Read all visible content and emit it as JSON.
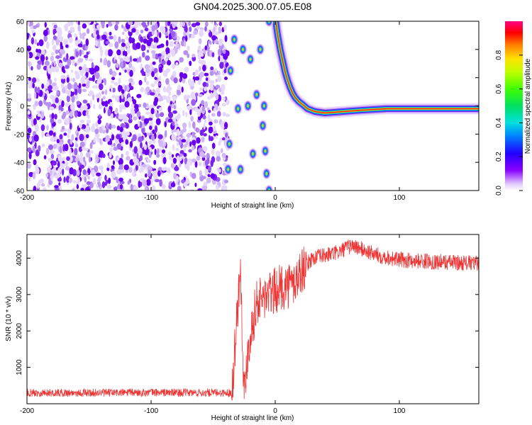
{
  "title": "GN04.2025.300.07.05.E08",
  "colors": {
    "speckle": "#7a20f0",
    "speckle_light": "#c6a4f5",
    "snr_line": "#ee3333",
    "frame": "#000000"
  },
  "chart_data": [
    {
      "type": "heatmap",
      "xlabel": "Height of straight line (km)",
      "ylabel": "Frequency (Hz)",
      "xlim": [
        -200,
        164
      ],
      "ylim": [
        -60,
        60
      ],
      "xticks": [
        -200,
        -100,
        0,
        100
      ],
      "yticks": [
        -60,
        -40,
        -20,
        0,
        20,
        40,
        60
      ],
      "colorbar": {
        "label": "Normalized spectral amplitude",
        "range": [
          0,
          1
        ],
        "ticks": [
          0.0,
          0.2,
          0.4,
          0.6,
          0.8
        ],
        "colormap": "rainbow (white → purple → blue → cyan → green → yellow → red → magenta)"
      },
      "features": {
        "noise_region_x": [
          -200,
          -38
        ],
        "main_trace": [
          [
            0,
            62
          ],
          [
            2,
            50
          ],
          [
            4,
            40
          ],
          [
            6,
            32
          ],
          [
            8,
            24
          ],
          [
            10,
            18
          ],
          [
            12,
            13
          ],
          [
            14,
            9
          ],
          [
            16,
            6
          ],
          [
            19,
            3
          ],
          [
            22,
            1
          ],
          [
            26,
            -2
          ],
          [
            32,
            -4
          ],
          [
            40,
            -5
          ],
          [
            55,
            -4
          ],
          [
            70,
            -3
          ],
          [
            90,
            -2
          ],
          [
            110,
            -2
          ],
          [
            130,
            -2
          ],
          [
            150,
            -2
          ],
          [
            164,
            -2
          ]
        ],
        "aliased_blobs": [
          [
            -38,
            -45
          ],
          [
            -37,
            -27
          ],
          [
            -36,
            25
          ],
          [
            -33,
            47
          ],
          [
            -30,
            -2
          ],
          [
            -28,
            -45
          ],
          [
            -26,
            40
          ],
          [
            -22,
            0
          ],
          [
            -20,
            33
          ],
          [
            -18,
            -34
          ],
          [
            -15,
            8
          ],
          [
            -12,
            40
          ],
          [
            -10,
            -14
          ],
          [
            -9,
            0
          ],
          [
            -8,
            -32
          ],
          [
            -7,
            -48
          ],
          [
            -5,
            60
          ],
          [
            -5,
            -60
          ]
        ]
      }
    },
    {
      "type": "line",
      "xlabel": "Height of straight line (km)",
      "ylabel": "SNR (10 * v/v)",
      "xlim": [
        -200,
        164
      ],
      "ylim": [
        0,
        4650
      ],
      "xticks": [
        -200,
        -100,
        0,
        100
      ],
      "yticks": [
        1000,
        2000,
        3000,
        4000
      ],
      "series": [
        {
          "values_approx": [
            [
              -200,
              300
            ],
            [
              -150,
              300
            ],
            [
              -100,
              310
            ],
            [
              -60,
              300
            ],
            [
              -35,
              300
            ],
            [
              -28,
              3800
            ],
            [
              -25,
              200
            ],
            [
              -22,
              1500
            ],
            [
              -15,
              2800
            ],
            [
              -5,
              3000
            ],
            [
              5,
              3200
            ],
            [
              15,
              3300
            ],
            [
              22,
              3700
            ],
            [
              30,
              4000
            ],
            [
              50,
              4150
            ],
            [
              62,
              4350
            ],
            [
              80,
              4100
            ],
            [
              100,
              3950
            ],
            [
              130,
              3900
            ],
            [
              164,
              3850
            ]
          ]
        }
      ]
    }
  ]
}
